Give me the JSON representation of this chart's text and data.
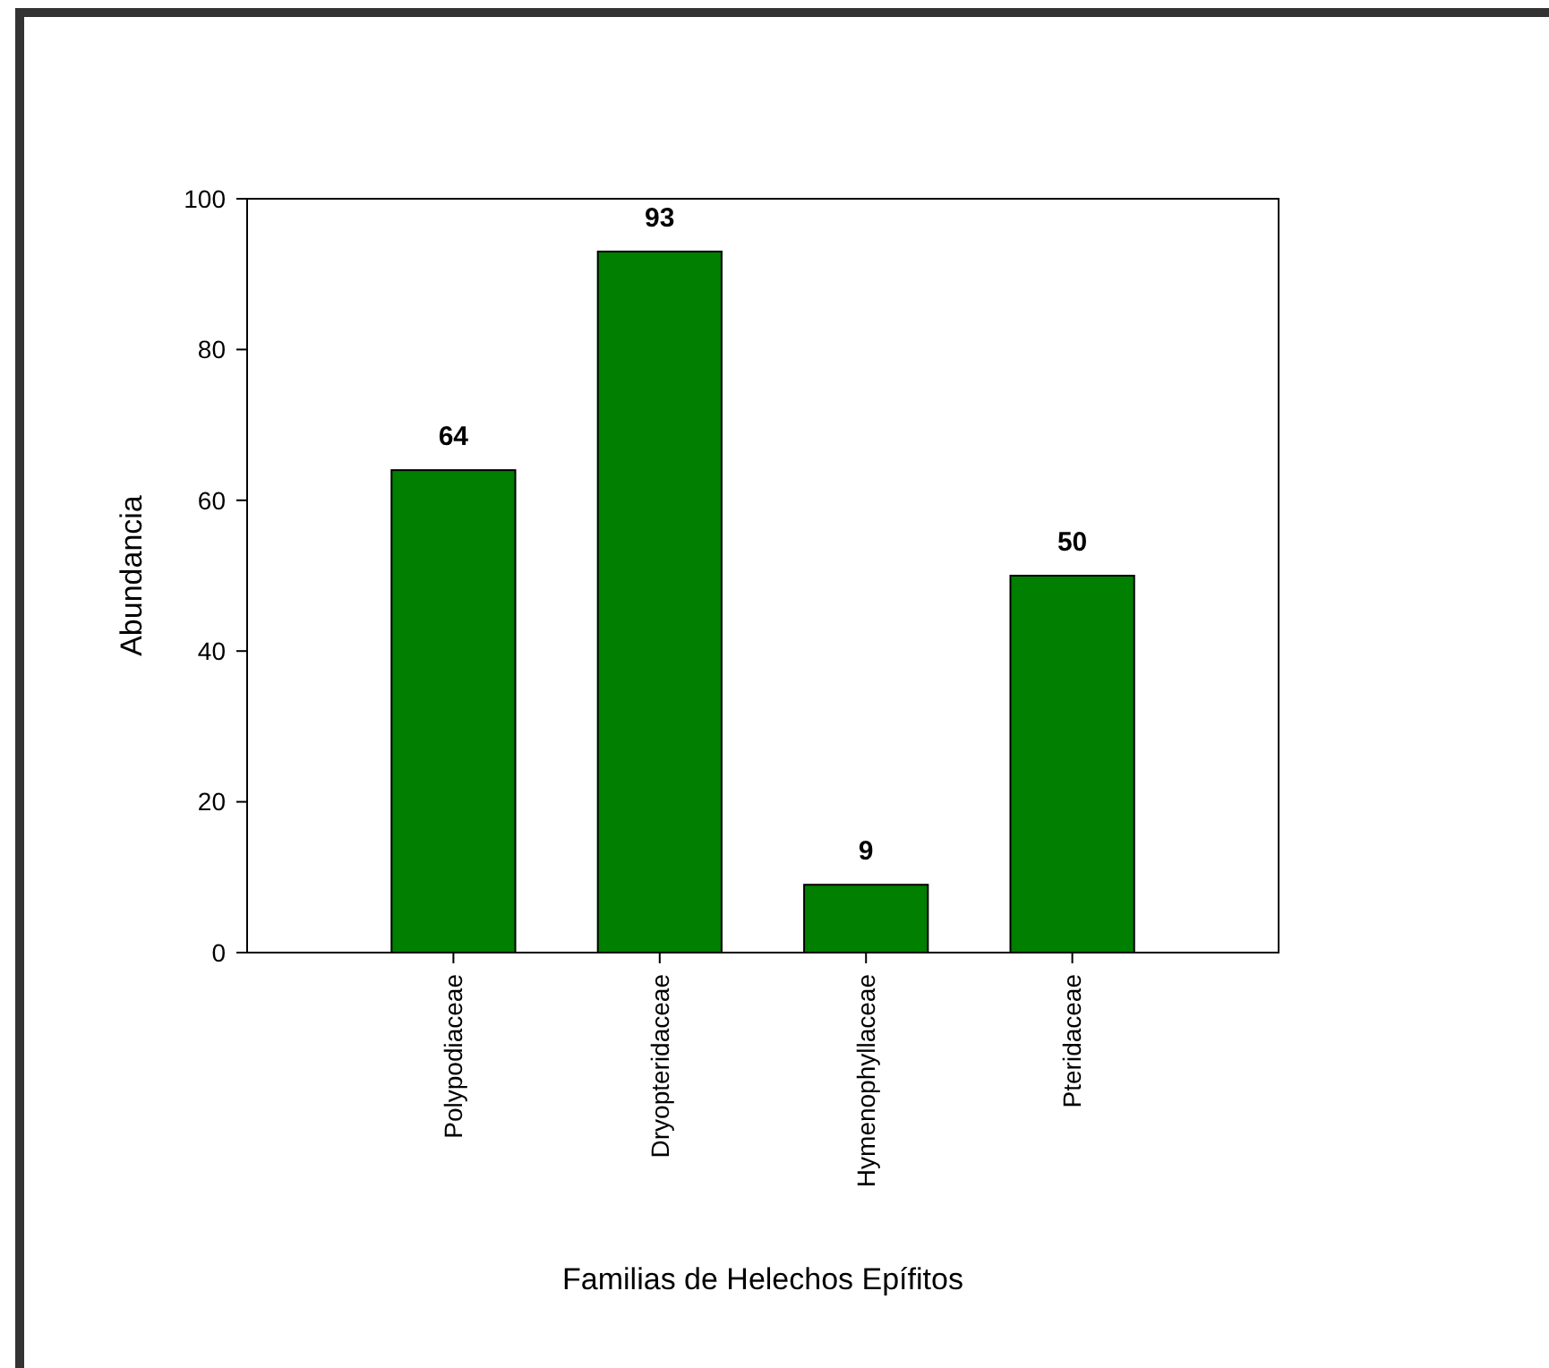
{
  "chart_data": {
    "type": "bar",
    "xlabel": "Familias de Helechos Epífitos",
    "ylabel": "Abundancia",
    "categories": [
      "Polypodiaceae",
      "Dryopteridaceae",
      "Hymenophyllaceae",
      "Pteridaceae"
    ],
    "values": [
      64,
      93,
      9,
      50
    ],
    "color": "#007f00",
    "ylim": [
      0,
      100
    ],
    "yticks": [
      0,
      20,
      40,
      60,
      80,
      100
    ],
    "data_labels": true,
    "grid": false
  }
}
